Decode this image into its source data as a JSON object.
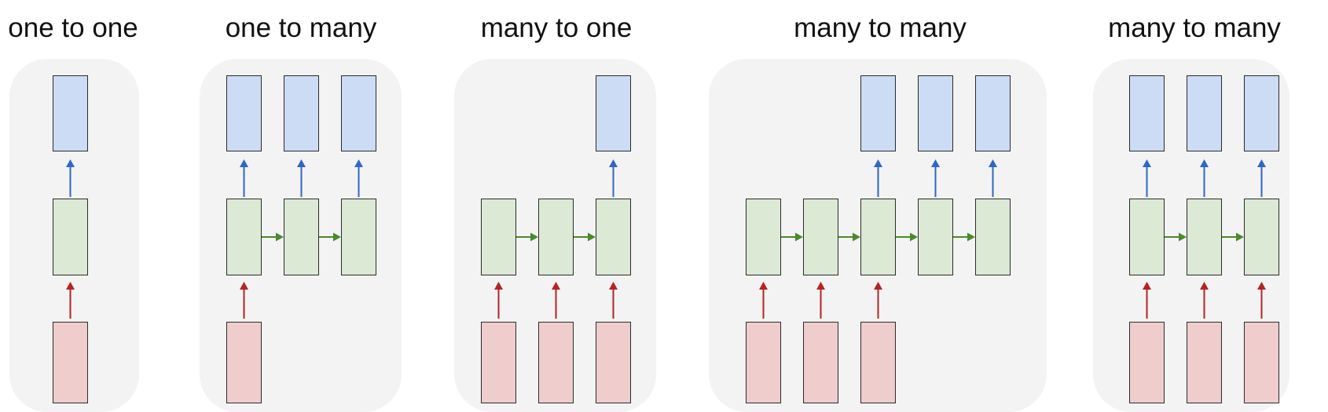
{
  "colors": {
    "output": "#cddcf5",
    "hidden": "#dce9d5",
    "input": "#efcdcd",
    "arrow_up_output": "#2f67c4",
    "arrow_up_input": "#b32424",
    "arrow_recurrent": "#4a8a2c",
    "panel_bg": "#f3f3f3"
  },
  "panels": [
    {
      "title": "one to one",
      "columns": [
        {
          "input": true,
          "output": true
        }
      ]
    },
    {
      "title": "one to many",
      "columns": [
        {
          "input": true,
          "output": true
        },
        {
          "input": false,
          "output": true
        },
        {
          "input": false,
          "output": true
        }
      ]
    },
    {
      "title": "many to one",
      "columns": [
        {
          "input": true,
          "output": false
        },
        {
          "input": true,
          "output": false
        },
        {
          "input": true,
          "output": true
        }
      ]
    },
    {
      "title": "many to many",
      "columns": [
        {
          "input": true,
          "output": false
        },
        {
          "input": true,
          "output": false
        },
        {
          "input": true,
          "output": true
        },
        {
          "input": false,
          "output": true
        },
        {
          "input": false,
          "output": true
        }
      ]
    },
    {
      "title": "many to many",
      "columns": [
        {
          "input": true,
          "output": true
        },
        {
          "input": true,
          "output": true
        },
        {
          "input": true,
          "output": true
        }
      ]
    }
  ]
}
